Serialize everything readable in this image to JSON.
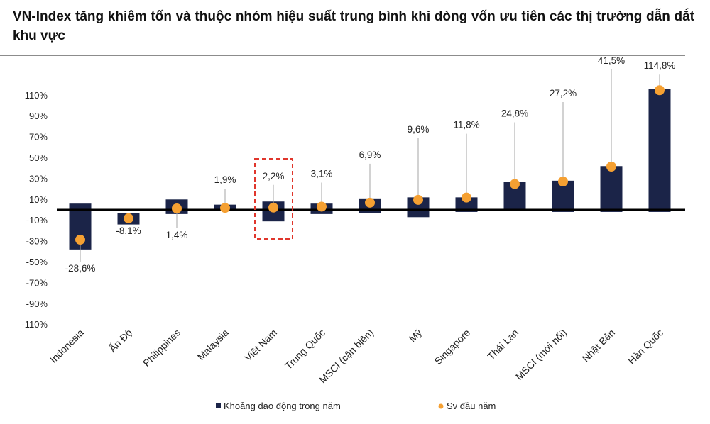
{
  "title": "VN-Index tăng khiêm tốn và thuộc nhóm hiệu suất trung bình khi dòng vốn ưu tiên các thị trường dẫn dắt khu vực",
  "colors": {
    "bar": "#1b2448",
    "dot": "#f5a032",
    "axis": "#000000",
    "highlight": "#e0362c",
    "leader": "#a6a6a6"
  },
  "chart_data": {
    "type": "bar",
    "ylim": [
      -110,
      120
    ],
    "yticks": [
      "110%",
      "90%",
      "70%",
      "50%",
      "30%",
      "10%",
      "-10%",
      "-30%",
      "-50%",
      "-70%",
      "-90%",
      "-110%"
    ],
    "ytick_values": [
      110,
      90,
      70,
      50,
      30,
      10,
      -10,
      -30,
      -50,
      -70,
      -90,
      -110
    ],
    "categories": [
      "Indonesia",
      "Ấn Độ",
      "Philippines",
      "Malaysia",
      "Việt Nam",
      "Trung Quốc",
      "MSCI (cận biên)",
      "Mỹ",
      "Singapore",
      "Thái Lan",
      "MSCI (mới nổi)",
      "Nhật Bản",
      "Hàn Quốc"
    ],
    "highlight_category": "Việt Nam",
    "series": [
      {
        "name": "Khoảng dao động trong năm",
        "type": "floating_bar",
        "low": [
          -38,
          -14,
          -4,
          -1,
          -11,
          -4,
          -3,
          -7,
          -2,
          -1,
          -2,
          -2,
          -2
        ],
        "high": [
          6,
          -3,
          10,
          5,
          8,
          6,
          11,
          12,
          12,
          27,
          28,
          42,
          116
        ]
      },
      {
        "name": "Sv đầu năm",
        "type": "scatter",
        "values": [
          -28.6,
          -8.1,
          1.4,
          1.9,
          2.2,
          3.1,
          6.9,
          9.6,
          11.8,
          24.8,
          27.2,
          41.5,
          114.8
        ],
        "labels": [
          "-28,6%",
          "-8,1%",
          "1,4%",
          "1,9%",
          "2,2%",
          "3,1%",
          "6,9%",
          "9,6%",
          "11,8%",
          "24,8%",
          "27,2%",
          "41,5%",
          "114,8%"
        ]
      }
    ],
    "legend_position": "bottom",
    "grid": false
  }
}
